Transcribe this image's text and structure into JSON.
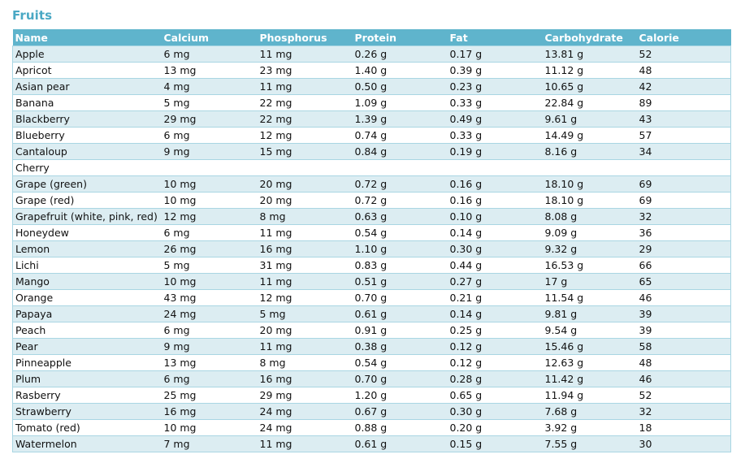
{
  "title": "Fruits",
  "columns": [
    "Name",
    "Calcium",
    "Phosphorus",
    "Protein",
    "Fat",
    "Carbohydrate",
    "Calorie"
  ],
  "rows": [
    [
      "Apple",
      "6 mg",
      "11 mg",
      "0.26 g",
      "0.17 g",
      "13.81 g",
      "52"
    ],
    [
      "Apricot",
      "13 mg",
      "23 mg",
      "1.40 g",
      "0.39 g",
      "11.12 g",
      "48"
    ],
    [
      "Asian pear",
      "4 mg",
      "11 mg",
      "0.50 g",
      "0.23 g",
      "10.65 g",
      "42"
    ],
    [
      "Banana",
      "5 mg",
      "22 mg",
      "1.09 g",
      "0.33 g",
      "22.84 g",
      "89"
    ],
    [
      "Blackberry",
      "29 mg",
      "22 mg",
      "1.39 g",
      "0.49 g",
      "9.61 g",
      "43"
    ],
    [
      "Blueberry",
      "6 mg",
      "12 mg",
      "0.74 g",
      "0.33 g",
      "14.49 g",
      "57"
    ],
    [
      "Cantaloup",
      "9 mg",
      "15 mg",
      "0.84 g",
      "0.19 g",
      "8.16 g",
      "34"
    ],
    [
      "Cherry",
      "",
      "",
      "",
      "",
      "",
      ""
    ],
    [
      "Grape (green)",
      "10 mg",
      "20 mg",
      "0.72 g",
      "0.16 g",
      "18.10 g",
      "69"
    ],
    [
      "Grape (red)",
      "10 mg",
      "20 mg",
      "0.72 g",
      "0.16 g",
      "18.10 g",
      "69"
    ],
    [
      "Grapefruit (white, pink, red)",
      "12 mg",
      "8 mg",
      "0.63 g",
      "0.10 g",
      "8.08 g",
      "32"
    ],
    [
      "Honeydew",
      "6 mg",
      "11 mg",
      "0.54 g",
      "0.14 g",
      "9.09 g",
      "36"
    ],
    [
      "Lemon",
      "26 mg",
      "16 mg",
      "1.10 g",
      "0.30 g",
      "9.32 g",
      "29"
    ],
    [
      "Lichi",
      "5 mg",
      "31 mg",
      "0.83 g",
      "0.44 g",
      "16.53 g",
      "66"
    ],
    [
      "Mango",
      "10 mg",
      "11 mg",
      "0.51 g",
      "0.27 g",
      "17 g",
      "65"
    ],
    [
      "Orange",
      "43 mg",
      "12 mg",
      "0.70 g",
      "0.21 g",
      "11.54 g",
      "46"
    ],
    [
      "Papaya",
      "24 mg",
      "5 mg",
      "0.61 g",
      "0.14 g",
      "9.81 g",
      "39"
    ],
    [
      "Peach",
      "6 mg",
      "20 mg",
      "0.91 g",
      "0.25 g",
      "9.54 g",
      "39"
    ],
    [
      "Pear",
      "9 mg",
      "11 mg",
      "0.38 g",
      "0.12 g",
      "15.46 g",
      "58"
    ],
    [
      "Pinneapple",
      "13 mg",
      "8 mg",
      "0.54 g",
      "0.12 g",
      "12.63 g",
      "48"
    ],
    [
      "Plum",
      "6 mg",
      "16 mg",
      "0.70 g",
      "0.28 g",
      "11.42 g",
      "46"
    ],
    [
      "Rasberry",
      "25 mg",
      "29 mg",
      "1.20 g",
      "0.65 g",
      "11.94 g",
      "52"
    ],
    [
      "Strawberry",
      "16 mg",
      "24 mg",
      "0.67 g",
      "0.30 g",
      "7.68 g",
      "32"
    ],
    [
      "Tomato (red)",
      "10 mg",
      "24 mg",
      "0.88 g",
      "0.20 g",
      "3.92 g",
      "18"
    ],
    [
      "Watermelon",
      "7 mg",
      "11 mg",
      "0.61 g",
      "0.15 g",
      "7.55 g",
      "30"
    ]
  ],
  "colors": {
    "title": "#4aa8c4",
    "header_bg": "#5fb4cc",
    "stripe": "#dcedf2",
    "grid": "#a9d6e3"
  }
}
